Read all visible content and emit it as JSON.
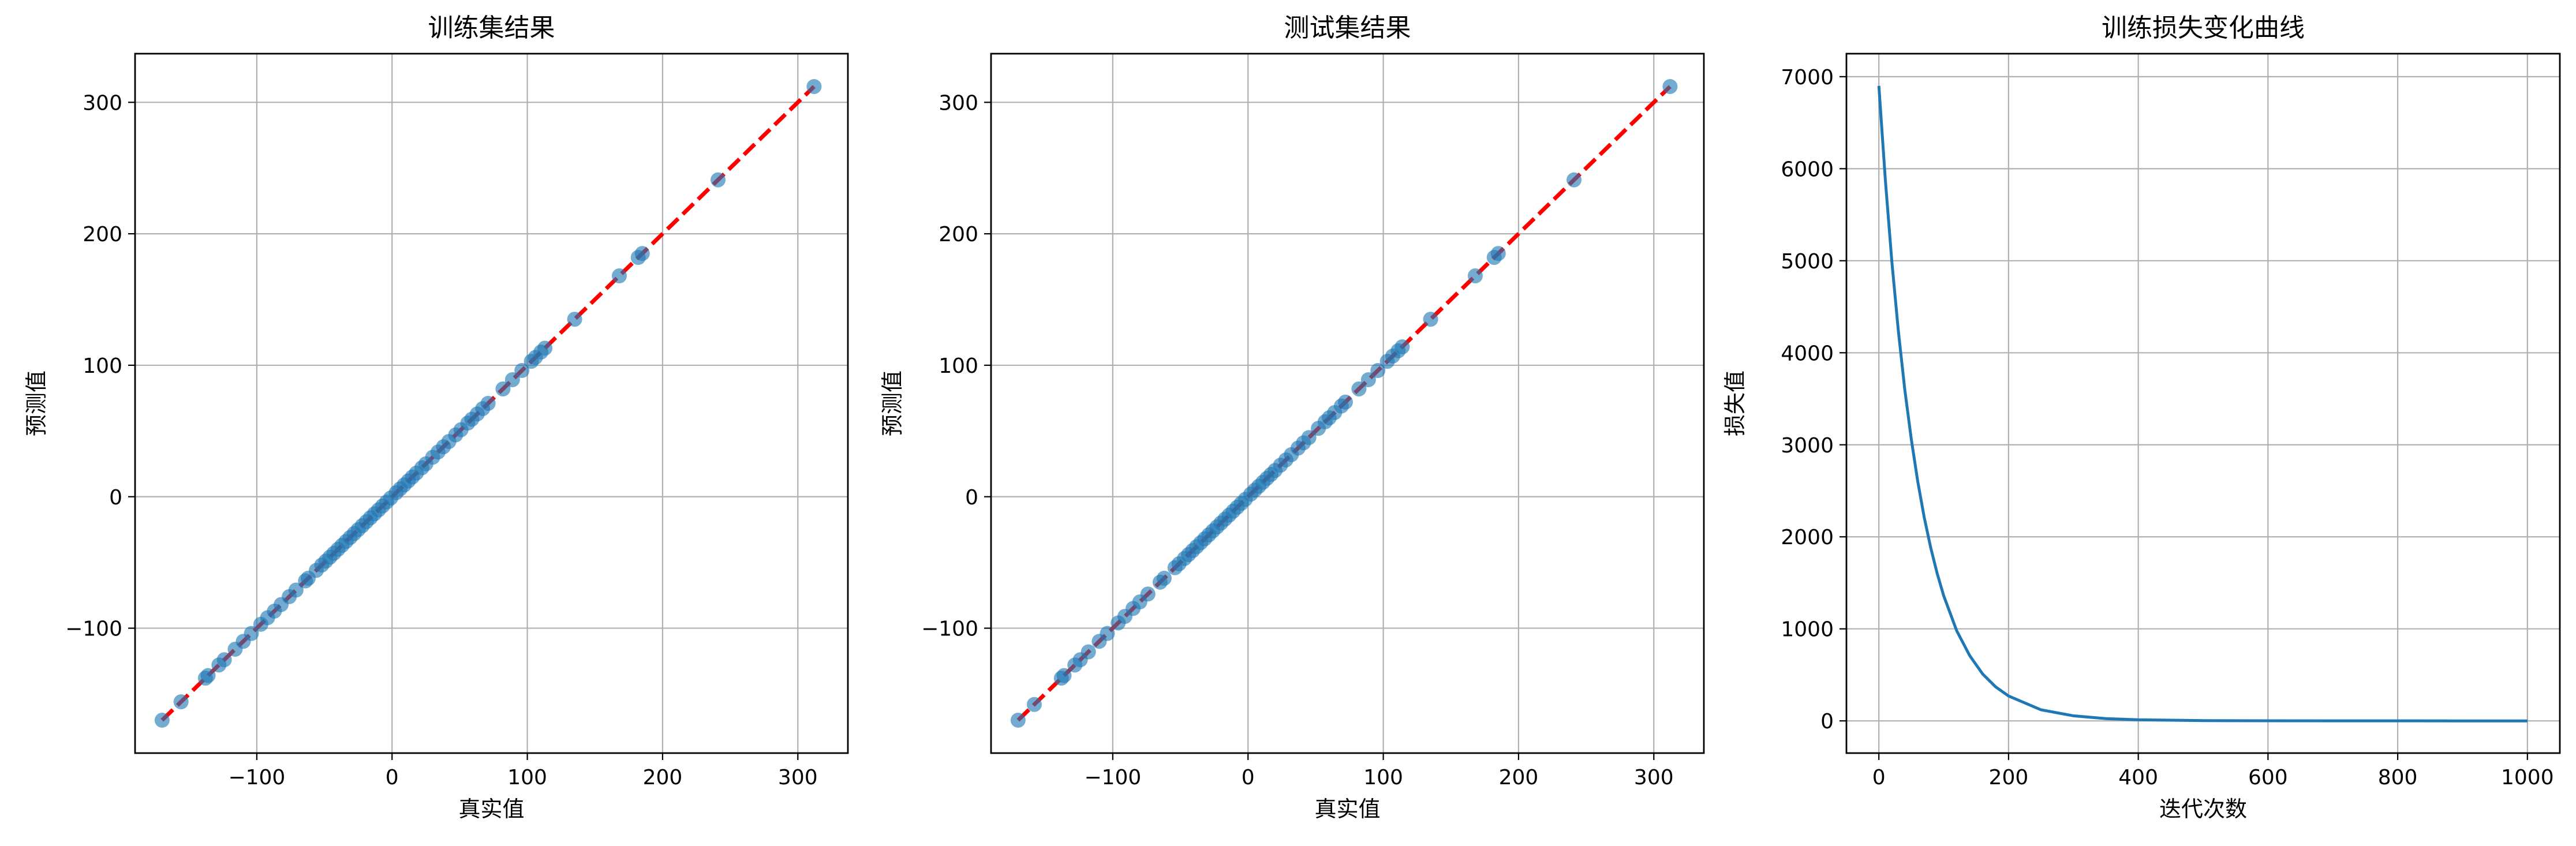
{
  "colors": {
    "scatter_points": "#1f77b4",
    "reference_line": "#ff0000",
    "loss_curve": "#1f77b4"
  },
  "chart_data": [
    {
      "type": "scatter",
      "title": "训练集结果",
      "xlabel": "真实值",
      "ylabel": "预测值",
      "xlim": [
        -190,
        337
      ],
      "ylim": [
        -195,
        337
      ],
      "xticks": [
        -100,
        0,
        100,
        200,
        300
      ],
      "yticks": [
        -100,
        0,
        100,
        200,
        300
      ],
      "tick_labels_x": [
        "−100",
        "0",
        "100",
        "200",
        "300"
      ],
      "tick_labels_y": [
        "−100",
        "0",
        "100",
        "200",
        "300"
      ],
      "grid": true,
      "reference_line": {
        "x": [
          -170,
          312
        ],
        "y": [
          -170,
          312
        ],
        "style": "dashed",
        "color": "red"
      },
      "x": [
        -170,
        -156,
        -138,
        -136,
        -128,
        -124,
        -116,
        -110,
        -104,
        -97,
        -92,
        -87,
        -82,
        -76,
        -71,
        -64,
        -62,
        -56,
        -52,
        -49,
        -46,
        -43,
        -40,
        -37,
        -34,
        -31,
        -28,
        -25,
        -22,
        -19,
        -16,
        -13,
        -10,
        -7,
        -4,
        -1,
        3,
        6,
        9,
        12,
        15,
        18,
        22,
        25,
        30,
        34,
        38,
        42,
        47,
        51,
        56,
        59,
        63,
        67,
        71,
        82,
        89,
        96,
        103,
        106,
        110,
        113,
        135,
        168,
        182,
        185,
        241,
        312
      ],
      "y": [
        -170,
        -156,
        -138,
        -136,
        -128,
        -124,
        -116,
        -110,
        -104,
        -97,
        -92,
        -87,
        -82,
        -76,
        -71,
        -64,
        -62,
        -56,
        -52,
        -49,
        -46,
        -43,
        -40,
        -37,
        -34,
        -31,
        -28,
        -25,
        -22,
        -19,
        -16,
        -13,
        -10,
        -7,
        -4,
        -1,
        3,
        6,
        9,
        12,
        15,
        18,
        22,
        25,
        30,
        34,
        38,
        42,
        47,
        51,
        56,
        59,
        63,
        67,
        71,
        82,
        89,
        96,
        103,
        106,
        110,
        113,
        135,
        168,
        182,
        185,
        241,
        312
      ]
    },
    {
      "type": "scatter",
      "title": "测试集结果",
      "xlabel": "真实值",
      "ylabel": "预测值",
      "xlim": [
        -190,
        337
      ],
      "ylim": [
        -195,
        337
      ],
      "xticks": [
        -100,
        0,
        100,
        200,
        300
      ],
      "yticks": [
        -100,
        0,
        100,
        200,
        300
      ],
      "tick_labels_x": [
        "−100",
        "0",
        "100",
        "200",
        "300"
      ],
      "tick_labels_y": [
        "−100",
        "0",
        "100",
        "200",
        "300"
      ],
      "grid": true,
      "reference_line": {
        "x": [
          -170,
          312
        ],
        "y": [
          -170,
          312
        ],
        "style": "dashed",
        "color": "red"
      },
      "x": [
        -170,
        -158,
        -138,
        -136,
        -128,
        -124,
        -118,
        -110,
        -104,
        -96,
        -91,
        -85,
        -80,
        -74,
        -65,
        -62,
        -54,
        -51,
        -47,
        -44,
        -41,
        -38,
        -35,
        -32,
        -29,
        -26,
        -23,
        -20,
        -17,
        -14,
        -11,
        -8,
        -5,
        -2,
        2,
        5,
        8,
        11,
        14,
        17,
        20,
        24,
        28,
        32,
        37,
        41,
        45,
        52,
        57,
        60,
        64,
        69,
        72,
        82,
        89,
        96,
        103,
        107,
        111,
        114,
        135,
        168,
        182,
        185,
        241,
        312
      ],
      "y": [
        -170,
        -158,
        -138,
        -136,
        -128,
        -124,
        -118,
        -110,
        -104,
        -96,
        -91,
        -85,
        -80,
        -74,
        -65,
        -62,
        -54,
        -51,
        -47,
        -44,
        -41,
        -38,
        -35,
        -32,
        -29,
        -26,
        -23,
        -20,
        -17,
        -14,
        -11,
        -8,
        -5,
        -2,
        2,
        5,
        8,
        11,
        14,
        17,
        20,
        24,
        28,
        32,
        37,
        41,
        45,
        52,
        57,
        60,
        64,
        69,
        72,
        82,
        89,
        96,
        103,
        107,
        111,
        114,
        135,
        168,
        182,
        185,
        241,
        312
      ]
    },
    {
      "type": "line",
      "title": "训练损失变化曲线",
      "xlabel": "迭代次数",
      "ylabel": "损失值",
      "xlim": [
        -50,
        1050
      ],
      "ylim": [
        -350,
        7250
      ],
      "xticks": [
        0,
        200,
        400,
        600,
        800,
        1000
      ],
      "yticks": [
        0,
        1000,
        2000,
        3000,
        4000,
        5000,
        6000,
        7000
      ],
      "tick_labels_x": [
        "0",
        "200",
        "400",
        "600",
        "800",
        "1000"
      ],
      "tick_labels_y": [
        "0",
        "1000",
        "2000",
        "3000",
        "4000",
        "5000",
        "6000",
        "7000"
      ],
      "grid": true,
      "x": [
        0,
        10,
        20,
        30,
        40,
        50,
        60,
        70,
        80,
        90,
        100,
        120,
        140,
        160,
        180,
        200,
        250,
        300,
        350,
        400,
        500,
        600,
        700,
        800,
        900,
        1000
      ],
      "y": [
        6900,
        5880,
        4990,
        4240,
        3600,
        3060,
        2600,
        2210,
        1880,
        1600,
        1360,
        980,
        710,
        510,
        370,
        270,
        120,
        55,
        25,
        12,
        3,
        1,
        0.5,
        0.3,
        0.2,
        0.1
      ]
    }
  ]
}
